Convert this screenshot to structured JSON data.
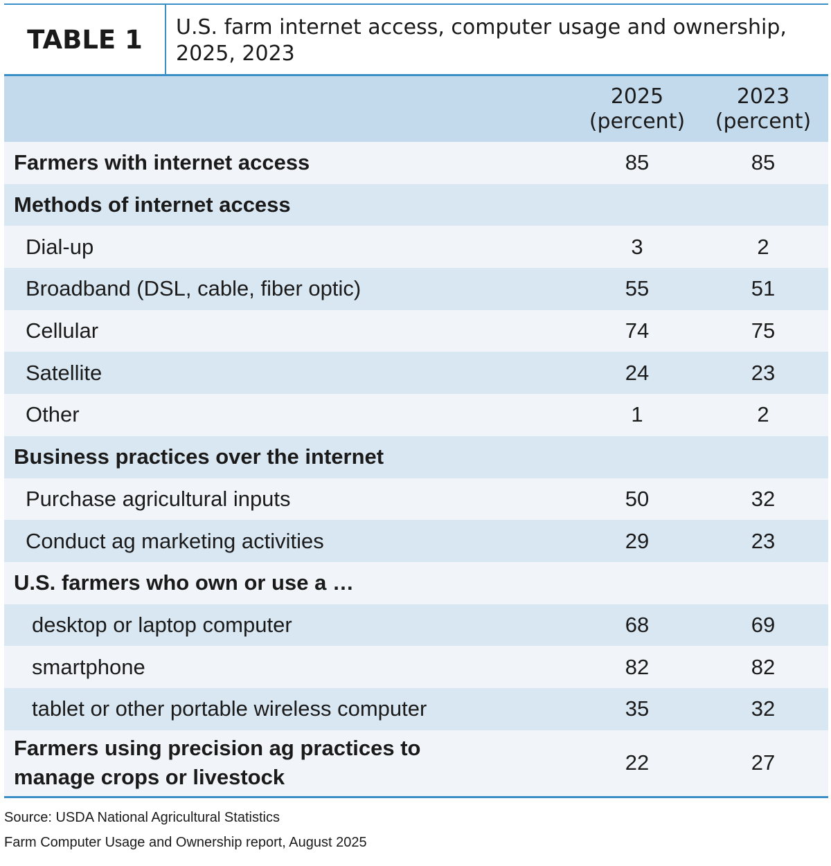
{
  "header": {
    "table_label": "TABLE 1",
    "title": "U.S. farm internet access, computer usage and ownership, 2025, 2023"
  },
  "colors": {
    "accent": "#3a8fc7",
    "header_row": "#c3d9ec",
    "row_dark": "#d9e7f2",
    "row_light": "#f1f5f9"
  },
  "chart_data": {
    "type": "table",
    "title": "U.S. farm internet access, computer usage and ownership, 2025, 2023",
    "columns": [
      "2025 (percent)",
      "2023 (percent)"
    ],
    "rows": [
      {
        "label": "Farmers with internet access",
        "style": "bold",
        "v2025": "85",
        "v2023": "85"
      },
      {
        "label": "Methods of internet access",
        "style": "bold",
        "v2025": "",
        "v2023": ""
      },
      {
        "label": "Dial-up",
        "style": "indent1",
        "v2025": "3",
        "v2023": "2"
      },
      {
        "label": "Broadband (DSL, cable, fiber optic)",
        "style": "indent1",
        "v2025": "55",
        "v2023": "51"
      },
      {
        "label": "Cellular",
        "style": "indent1",
        "v2025": "74",
        "v2023": "75"
      },
      {
        "label": "Satellite",
        "style": "indent1",
        "v2025": "24",
        "v2023": "23"
      },
      {
        "label": "Other",
        "style": "indent1",
        "v2025": "1",
        "v2023": "2"
      },
      {
        "label": "Business practices over the internet",
        "style": "bold",
        "v2025": "",
        "v2023": ""
      },
      {
        "label": "Purchase agricultural inputs",
        "style": "indent1",
        "v2025": "50",
        "v2023": "32"
      },
      {
        "label": "Conduct ag marketing activities",
        "style": "indent1",
        "v2025": "29",
        "v2023": "23"
      },
      {
        "label": "U.S. farmers who own or use a …",
        "style": "bold",
        "v2025": "",
        "v2023": ""
      },
      {
        "label": "desktop or laptop computer",
        "style": "indent2",
        "v2025": "68",
        "v2023": "69"
      },
      {
        "label": "smartphone",
        "style": "indent2",
        "v2025": "82",
        "v2023": "82"
      },
      {
        "label": "tablet or other portable wireless computer",
        "style": "indent2",
        "v2025": "35",
        "v2023": "32"
      },
      {
        "label": "Farmers using precision ag practices to manage crops or livestock",
        "style": "bold",
        "v2025": "22",
        "v2023": "27"
      }
    ]
  },
  "columns_head": {
    "c1_line1": "2025",
    "c1_line2": "(percent)",
    "c2_line1": "2023",
    "c2_line2": "(percent)"
  },
  "footer": {
    "source_line1": "Source: USDA National Agricultural Statistics",
    "source_line2": "Farm Computer Usage and Ownership report, August 2025"
  }
}
